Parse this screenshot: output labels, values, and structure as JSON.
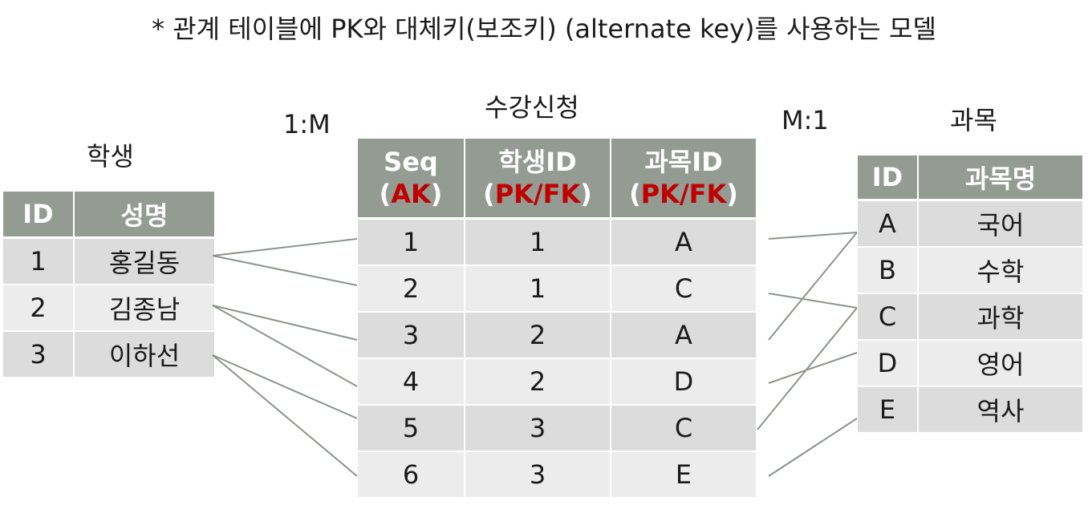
{
  "heading": "* 관계 테이블에 PK와 대체키(보조키) (alternate key)를 사용하는 모델",
  "captions": {
    "student": "학생",
    "enroll": "수강신청",
    "subject": "과목",
    "rel_left": "1:M",
    "rel_right": "M:1"
  },
  "student": {
    "headers": [
      "ID",
      "성명"
    ],
    "rows": [
      [
        "1",
        "홍길동"
      ],
      [
        "2",
        "김종남"
      ],
      [
        "3",
        "이하선"
      ]
    ]
  },
  "enroll": {
    "headers": [
      {
        "name": "Seq",
        "open": "(",
        "key": "AK",
        "close": ")"
      },
      {
        "name": "학생ID",
        "open": "(",
        "key": "PK/FK",
        "close": ")"
      },
      {
        "name": "과목ID",
        "open": "(",
        "key": "PK/FK",
        "close": ")"
      }
    ],
    "rows": [
      [
        "1",
        "1",
        "A"
      ],
      [
        "2",
        "1",
        "C"
      ],
      [
        "3",
        "2",
        "A"
      ],
      [
        "4",
        "2",
        "D"
      ],
      [
        "5",
        "3",
        "C"
      ],
      [
        "6",
        "3",
        "E"
      ]
    ]
  },
  "subject": {
    "headers": [
      "ID",
      "과목명"
    ],
    "rows": [
      [
        "A",
        "국어"
      ],
      [
        "B",
        "수학"
      ],
      [
        "C",
        "과학"
      ],
      [
        "D",
        "영어"
      ],
      [
        "E",
        "역사"
      ]
    ]
  },
  "colors": {
    "header_bg": "#939b93",
    "key_red": "#c00000",
    "row_dark": "#dcdcdc",
    "row_light": "#ececec",
    "connector": "#8c948c"
  }
}
